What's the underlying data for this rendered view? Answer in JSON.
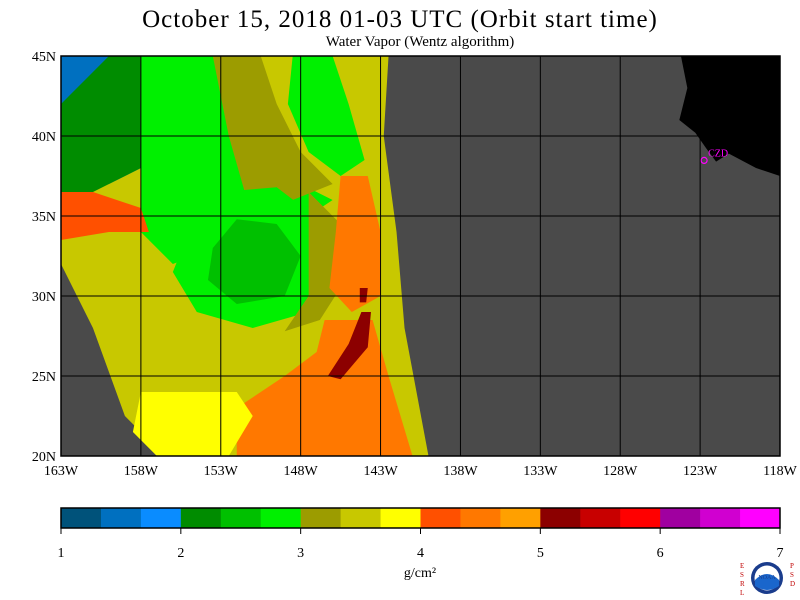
{
  "title": "October 15, 2018  01-03 UTC  (Orbit start time)",
  "subtitle": "Water Vapor (Wentz algorithm)",
  "logo": {
    "left_letters": [
      "E",
      "S",
      "R",
      "L"
    ],
    "right_letters": [
      "P",
      "S",
      "D"
    ],
    "center": "NOAA"
  },
  "colors": {
    "land": "#000000",
    "no_data": "#4a4a4a",
    "grid": "#000000",
    "station": "#ff00ff"
  },
  "chart_data": {
    "type": "heatmap",
    "title": "October 15, 2018  01-03 UTC  (Orbit start time)",
    "subtitle": "Water Vapor (Wentz algorithm)",
    "x_ticks": [
      {
        "lon": -163,
        "label": "163W"
      },
      {
        "lon": -158,
        "label": "158W"
      },
      {
        "lon": -153,
        "label": "153W"
      },
      {
        "lon": -148,
        "label": "148W"
      },
      {
        "lon": -143,
        "label": "143W"
      },
      {
        "lon": -138,
        "label": "138W"
      },
      {
        "lon": -133,
        "label": "133W"
      },
      {
        "lon": -128,
        "label": "128W"
      },
      {
        "lon": -123,
        "label": "123W"
      },
      {
        "lon": -118,
        "label": "118W"
      }
    ],
    "y_ticks": [
      {
        "lat": 45,
        "label": "45N"
      },
      {
        "lat": 40,
        "label": "40N"
      },
      {
        "lat": 35,
        "label": "35N"
      },
      {
        "lat": 30,
        "label": "30N"
      },
      {
        "lat": 25,
        "label": "25N"
      },
      {
        "lat": 20,
        "label": "20N"
      }
    ],
    "xlim": [
      -163,
      -118
    ],
    "ylim": [
      20,
      45
    ],
    "grid": true,
    "station": {
      "label": "CZD",
      "lon": -122.5,
      "lat": 38.6
    },
    "colorbar": {
      "unit": "g/cm²",
      "range": [
        1,
        7
      ],
      "tick_labels": [
        "1",
        "2",
        "3",
        "4",
        "5",
        "6",
        "7"
      ],
      "bins": [
        {
          "from": 1.0,
          "to": 1.333,
          "color": "#00527a"
        },
        {
          "from": 1.333,
          "to": 1.667,
          "color": "#0070c0"
        },
        {
          "from": 1.667,
          "to": 2.0,
          "color": "#0a8cff"
        },
        {
          "from": 2.0,
          "to": 2.333,
          "color": "#008c00"
        },
        {
          "from": 2.333,
          "to": 2.667,
          "color": "#00c000"
        },
        {
          "from": 2.667,
          "to": 3.0,
          "color": "#00f000"
        },
        {
          "from": 3.0,
          "to": 3.333,
          "color": "#9c9c00"
        },
        {
          "from": 3.333,
          "to": 3.667,
          "color": "#c8c800"
        },
        {
          "from": 3.667,
          "to": 4.0,
          "color": "#ffff00"
        },
        {
          "from": 4.0,
          "to": 4.333,
          "color": "#ff5000"
        },
        {
          "from": 4.333,
          "to": 4.667,
          "color": "#ff7800"
        },
        {
          "from": 4.667,
          "to": 5.0,
          "color": "#ffa000"
        },
        {
          "from": 5.0,
          "to": 5.333,
          "color": "#8c0000"
        },
        {
          "from": 5.333,
          "to": 5.667,
          "color": "#c80000"
        },
        {
          "from": 5.667,
          "to": 6.0,
          "color": "#ff0000"
        },
        {
          "from": 6.0,
          "to": 6.333,
          "color": "#a000a0"
        },
        {
          "from": 6.333,
          "to": 6.667,
          "color": "#d000d0"
        },
        {
          "from": 6.667,
          "to": 7.0,
          "color": "#ff00ff"
        }
      ]
    },
    "regions": [
      {
        "name": "dry-northwest",
        "value": 1.5,
        "points": [
          [
            -163,
            45
          ],
          [
            -158.5,
            45
          ],
          [
            -157,
            42
          ],
          [
            -157,
            38.5
          ],
          [
            -160,
            37
          ],
          [
            -163,
            36.5
          ]
        ]
      },
      {
        "name": "dry-north",
        "value": 2.2,
        "points": [
          [
            -160,
            45
          ],
          [
            -155.5,
            45
          ],
          [
            -155.5,
            43
          ],
          [
            -157,
            40
          ],
          [
            -158,
            38
          ],
          [
            -161,
            36.5
          ],
          [
            -163,
            36.5
          ],
          [
            -163,
            42
          ]
        ]
      },
      {
        "name": "green-north",
        "value": 2.8,
        "points": [
          [
            -158,
            45
          ],
          [
            -152,
            45
          ],
          [
            -151,
            41
          ],
          [
            -150,
            38
          ],
          [
            -146,
            36
          ],
          [
            -149,
            34
          ],
          [
            -152,
            33.5
          ],
          [
            -156,
            32
          ],
          [
            -158,
            34
          ],
          [
            -158,
            40
          ]
        ]
      },
      {
        "name": "olive-band",
        "value": 3.3,
        "points": [
          [
            -153.5,
            45
          ],
          [
            -150.5,
            45
          ],
          [
            -149.5,
            42
          ],
          [
            -148,
            39
          ],
          [
            -146,
            37
          ],
          [
            -148.5,
            36
          ],
          [
            -151.5,
            36.5
          ],
          [
            -152.5,
            40
          ]
        ]
      },
      {
        "name": "green-swirl",
        "value": 2.8,
        "points": [
          [
            -155,
            34
          ],
          [
            -153,
            36.5
          ],
          [
            -149.5,
            36.8
          ],
          [
            -146.5,
            34.5
          ],
          [
            -146,
            31.5
          ],
          [
            -147.5,
            29
          ],
          [
            -151,
            28
          ],
          [
            -154.5,
            29
          ],
          [
            -156,
            31.5
          ]
        ]
      },
      {
        "name": "green-core",
        "value": 2.4,
        "points": [
          [
            -153.5,
            33
          ],
          [
            -152,
            34.8
          ],
          [
            -149.5,
            34.5
          ],
          [
            -148,
            32.5
          ],
          [
            -149,
            30
          ],
          [
            -152,
            29.5
          ],
          [
            -153.8,
            31
          ]
        ]
      },
      {
        "name": "olive-swirl-edge",
        "value": 3.3,
        "points": [
          [
            -147.5,
            36.5
          ],
          [
            -145.5,
            34.5
          ],
          [
            -145.2,
            31
          ],
          [
            -146.8,
            28.5
          ],
          [
            -149,
            27.8
          ],
          [
            -147.5,
            30
          ],
          [
            -147.5,
            33.5
          ]
        ]
      },
      {
        "name": "green-northeast",
        "value": 2.8,
        "points": [
          [
            -148.5,
            45
          ],
          [
            -146,
            45
          ],
          [
            -145,
            42
          ],
          [
            -144,
            38.5
          ],
          [
            -145.5,
            37.5
          ],
          [
            -147.5,
            39
          ],
          [
            -148.8,
            42
          ]
        ]
      },
      {
        "name": "orange-band-north",
        "value": 4.4,
        "points": [
          [
            -145.5,
            37.5
          ],
          [
            -143.8,
            37.5
          ],
          [
            -143,
            34
          ],
          [
            -143,
            30
          ],
          [
            -144.8,
            29
          ],
          [
            -146.2,
            30.5
          ],
          [
            -145.8,
            34
          ]
        ]
      },
      {
        "name": "orange-band-west",
        "value": 4.2,
        "points": [
          [
            -163,
            36.5
          ],
          [
            -161,
            36.5
          ],
          [
            -158,
            35.5
          ],
          [
            -157.5,
            34
          ],
          [
            -160,
            34
          ],
          [
            -163,
            33.5
          ]
        ]
      },
      {
        "name": "orange-south",
        "value": 4.4,
        "points": [
          [
            -146.5,
            28.5
          ],
          [
            -143.5,
            28.5
          ],
          [
            -142.5,
            25
          ],
          [
            -141,
            20
          ],
          [
            -152,
            20
          ],
          [
            -152,
            23
          ],
          [
            -149,
            25
          ],
          [
            -147,
            26.5
          ]
        ]
      },
      {
        "name": "dark-red-streak",
        "value": 5.1,
        "points": [
          [
            -144.2,
            29
          ],
          [
            -143.6,
            29
          ],
          [
            -143.8,
            26.8
          ],
          [
            -145.5,
            24.8
          ],
          [
            -146.3,
            25
          ],
          [
            -145,
            27
          ]
        ]
      },
      {
        "name": "dark-red-streak-2",
        "value": 5.1,
        "points": [
          [
            -144.3,
            30.5
          ],
          [
            -143.8,
            30.5
          ],
          [
            -143.9,
            29.6
          ],
          [
            -144.3,
            29.6
          ]
        ]
      },
      {
        "name": "yellow-southwest",
        "value": 3.8,
        "points": [
          [
            -158,
            24
          ],
          [
            -152,
            24
          ],
          [
            -151,
            22.5
          ],
          [
            -152.5,
            20
          ],
          [
            -157,
            20
          ],
          [
            -158.5,
            21.5
          ]
        ]
      }
    ]
  }
}
